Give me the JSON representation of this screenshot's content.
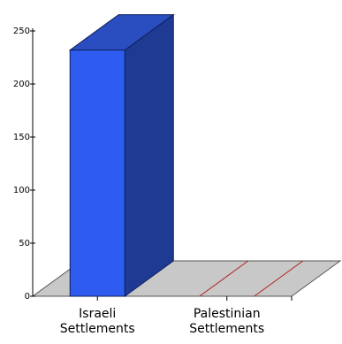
{
  "chart_data": {
    "type": "bar",
    "style": "3d",
    "categories": [
      "Israeli Settlements",
      "Palestinian Settlements"
    ],
    "category_lines": [
      [
        "Israeli",
        "Settlements"
      ],
      [
        "Palestinian",
        "Settlements"
      ]
    ],
    "values": [
      232,
      0
    ],
    "yticks": [
      0,
      50,
      100,
      150,
      200,
      250
    ],
    "ylim": [
      0,
      250
    ],
    "title": "",
    "xlabel": "",
    "ylabel": "",
    "grid": false,
    "legend": "none",
    "colors": {
      "bar_front": "#2f5cf0",
      "bar_top": "#2a4ec0",
      "bar_side": "#1f3a93",
      "floor": "#c8c8c8",
      "zero_marker": "#b02020",
      "axis": "#000000"
    }
  }
}
